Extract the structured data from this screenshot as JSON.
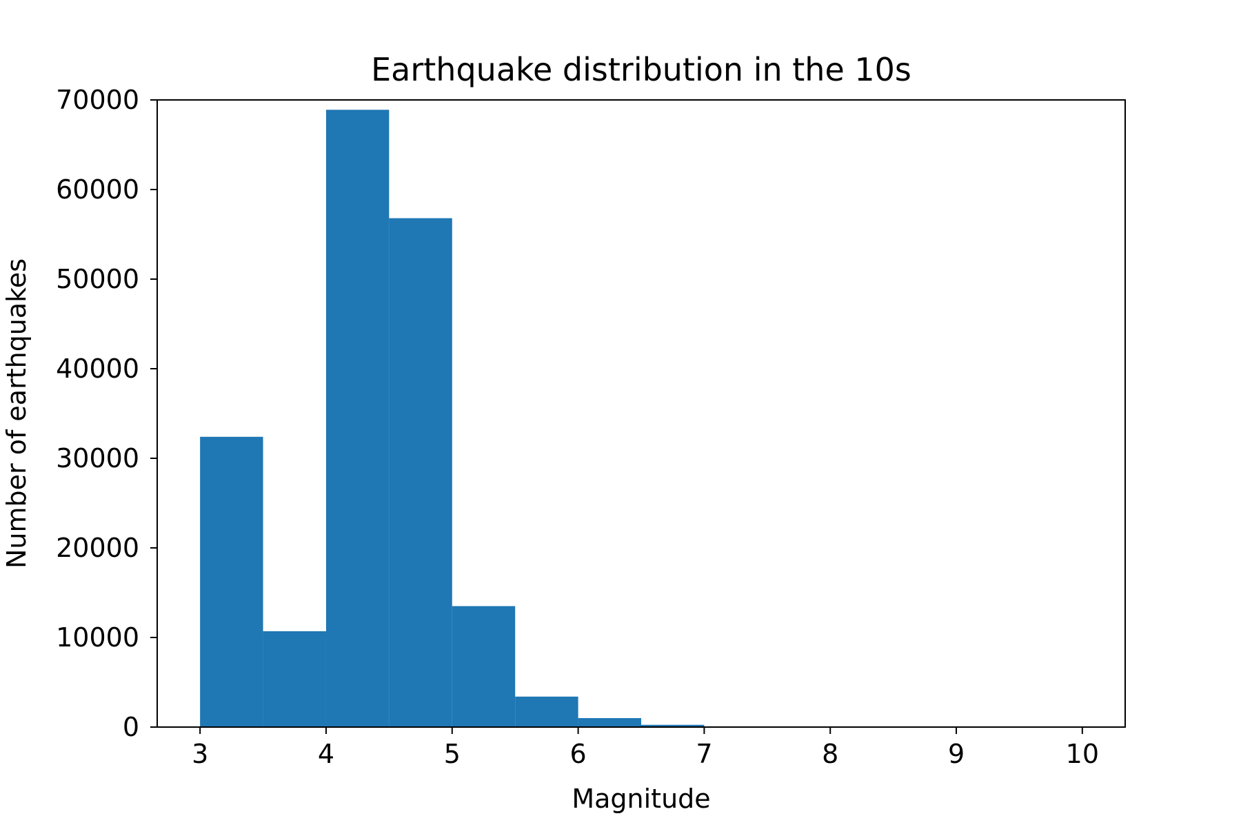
{
  "chart_data": {
    "type": "bar",
    "title": "Earthquake distribution in the 10s",
    "xlabel": "Magnitude",
    "ylabel": "Number of earthquakes",
    "xlim": [
      2.66,
      10.34
    ],
    "ylim": [
      0,
      70000
    ],
    "x_ticks": [
      3,
      4,
      5,
      6,
      7,
      8,
      9,
      10
    ],
    "y_ticks": [
      0,
      10000,
      20000,
      30000,
      40000,
      50000,
      60000,
      70000
    ],
    "bins": [
      {
        "x0": 3.0,
        "x1": 3.5,
        "value": 32400
      },
      {
        "x0": 3.5,
        "x1": 4.0,
        "value": 10700
      },
      {
        "x0": 4.0,
        "x1": 4.5,
        "value": 68900
      },
      {
        "x0": 4.5,
        "x1": 5.0,
        "value": 56800
      },
      {
        "x0": 5.0,
        "x1": 5.5,
        "value": 13500
      },
      {
        "x0": 5.5,
        "x1": 6.0,
        "value": 3400
      },
      {
        "x0": 6.0,
        "x1": 6.5,
        "value": 1000
      },
      {
        "x0": 6.5,
        "x1": 7.0,
        "value": 250
      },
      {
        "x0": 7.0,
        "x1": 7.5,
        "value": 30
      },
      {
        "x0": 7.5,
        "x1": 8.0,
        "value": 5
      },
      {
        "x0": 8.0,
        "x1": 8.5,
        "value": 1
      },
      {
        "x0": 8.5,
        "x1": 9.0,
        "value": 0
      },
      {
        "x0": 9.0,
        "x1": 9.5,
        "value": 0
      },
      {
        "x0": 9.5,
        "x1": 10.0,
        "value": 0
      }
    ],
    "bar_color": "#1f77b4",
    "grid": false,
    "legend": "none"
  }
}
